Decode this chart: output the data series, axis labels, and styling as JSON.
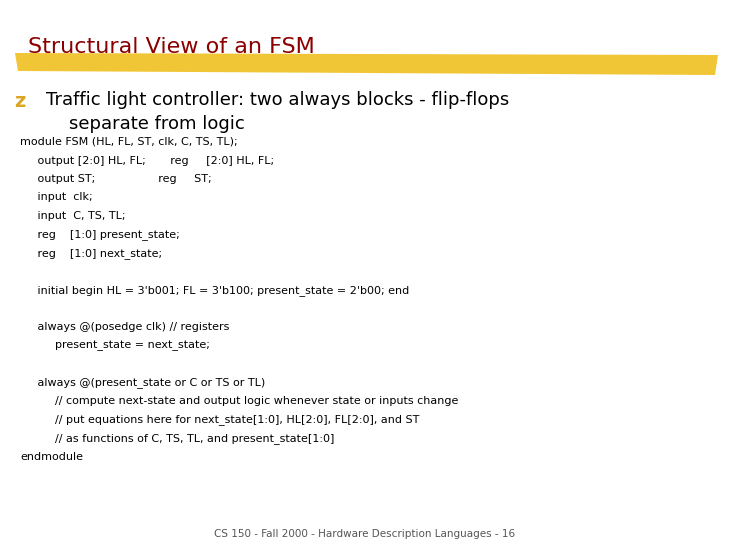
{
  "title": "Structural View of an FSM",
  "title_color": "#8B0000",
  "title_fontsize": 16,
  "title_font": "Comic Sans MS",
  "bullet_color": "#DAA520",
  "bullet_fontsize": 13,
  "bullet_line1": "Traffic light controller: two always blocks - flip-flops",
  "bullet_line2": "    separate from logic",
  "code_fontsize": 8.0,
  "code_lines": [
    "module FSM (HL, FL, ST, clk, C, TS, TL);",
    "     output [2:0] HL, FL;       reg     [2:0] HL, FL;",
    "     output ST;                  reg     ST;",
    "     input  clk;",
    "     input  C, TS, TL;",
    "     reg    [1:0] present_state;",
    "     reg    [1:0] next_state;",
    "",
    "     initial begin HL = 3'b001; FL = 3'b100; present_state = 2'b00; end",
    "",
    "     always @(posedge clk) // registers",
    "          present_state = next_state;",
    "",
    "     always @(present_state or C or TS or TL)",
    "          // compute next-state and output logic whenever state or inputs change",
    "          // put equations here for next_state[1:0], HL[2:0], FL[2:0], and ST",
    "          // as functions of C, TS, TL, and present_state[1:0]",
    "endmodule"
  ],
  "footer_text": "CS 150 - Fall 2000 - Hardware Description Languages - 16",
  "footer_fontsize": 7.5,
  "bg_color": "#FFFFFF",
  "highlight_color": "#F0C020"
}
